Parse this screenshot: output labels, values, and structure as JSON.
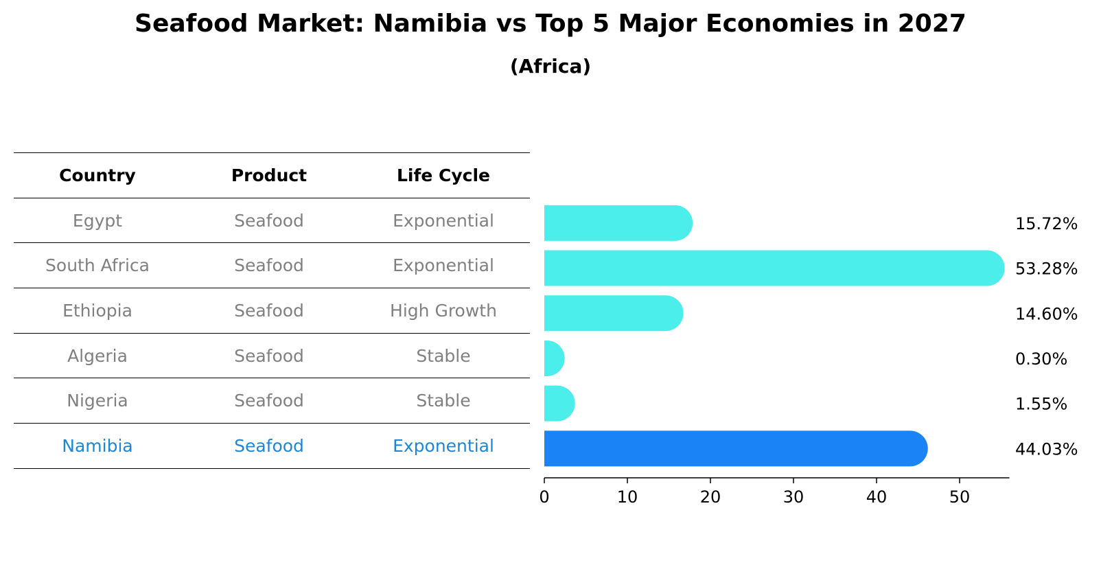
{
  "title": "Seafood Market: Namibia vs Top 5 Major Economies in 2027",
  "subtitle": "(Africa)",
  "table": {
    "headers": [
      "Country",
      "Product",
      "Life Cycle"
    ],
    "rows": [
      [
        "Egypt",
        "Seafood",
        "Exponential"
      ],
      [
        "South Africa",
        "Seafood",
        "Exponential"
      ],
      [
        "Ethiopia",
        "Seafood",
        "High Growth"
      ],
      [
        "Algeria",
        "Seafood",
        "Stable"
      ],
      [
        "Nigeria",
        "Seafood",
        "Stable"
      ],
      [
        "Namibia",
        "Seafood",
        "Exponential"
      ]
    ],
    "highlight_row": 5
  },
  "colors": {
    "bar": "#4beeea",
    "highlight_bar": "#1a83f5",
    "highlight_text": "#1f86d6",
    "muted_text": "#808080"
  },
  "chart_data": {
    "type": "bar",
    "orientation": "horizontal",
    "categories": [
      "Egypt",
      "South Africa",
      "Ethiopia",
      "Algeria",
      "Nigeria",
      "Namibia"
    ],
    "values": [
      15.72,
      53.28,
      14.6,
      0.3,
      1.55,
      44.03
    ],
    "value_labels": [
      "15.72%",
      "53.28%",
      "14.60%",
      "0.30%",
      "1.55%",
      "44.03%"
    ],
    "highlight": "Namibia",
    "xlim": [
      0,
      56
    ],
    "xticks": [
      0,
      10,
      20,
      30,
      40,
      50
    ]
  }
}
